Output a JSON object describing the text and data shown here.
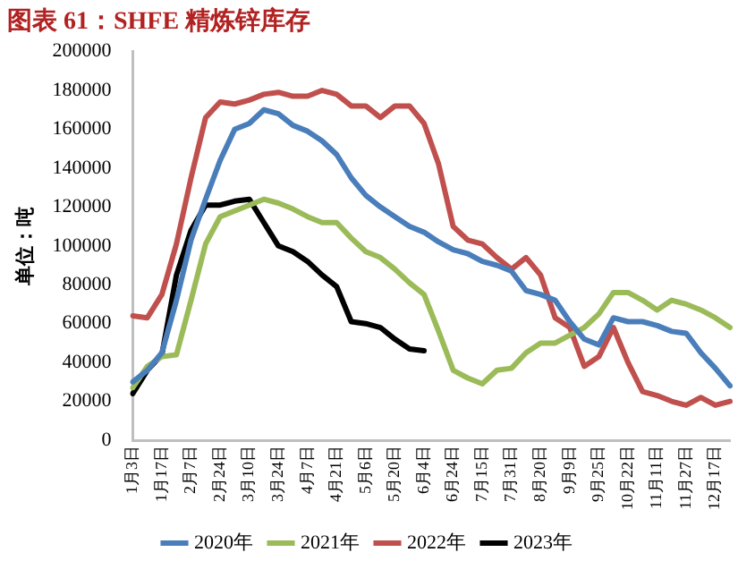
{
  "chart_data": {
    "type": "line",
    "title": "图表 61：SHFE 精炼锌库存",
    "ylabel": "单位：吨",
    "categories": [
      "1月3日",
      null,
      "1月17日",
      null,
      "2月7日",
      null,
      "2月24日",
      null,
      "3月10日",
      null,
      "3月24日",
      null,
      "4月7日",
      null,
      "4月21日",
      null,
      "5月6日",
      null,
      "5月20日",
      null,
      "6月4日",
      null,
      "6月24日",
      null,
      "7月15日",
      null,
      "7月31日",
      null,
      "8月20日",
      null,
      "9月9日",
      null,
      "9月25日",
      null,
      "10月22日",
      null,
      "11月11日",
      null,
      "11月27日",
      null,
      "12月17日",
      null
    ],
    "ylim": [
      0,
      200000
    ],
    "yticks": [
      0,
      20000,
      40000,
      60000,
      80000,
      100000,
      120000,
      140000,
      160000,
      180000,
      200000
    ],
    "grid": false,
    "legend": "bottom",
    "marker": "none",
    "line_style": "solid",
    "series": [
      {
        "name": "2020年",
        "color": "#4a7ebb",
        "values": [
          30000,
          36000,
          45000,
          72000,
          103000,
          124000,
          144000,
          160000,
          163000,
          170000,
          168000,
          162000,
          159000,
          154000,
          147000,
          135000,
          126000,
          120000,
          115000,
          110000,
          107000,
          102000,
          98000,
          96000,
          92000,
          90000,
          87000,
          77000,
          75000,
          72000,
          61000,
          52000,
          49000,
          63000,
          61000,
          61000,
          59000,
          56000,
          55000,
          45000,
          37000,
          28000
        ]
      },
      {
        "name": "2021年",
        "color": "#9bbb59",
        "values": [
          27000,
          38000,
          43000,
          44000,
          72000,
          101000,
          115000,
          118000,
          121000,
          124000,
          122000,
          119000,
          115000,
          112000,
          112000,
          104000,
          97000,
          94000,
          88000,
          81000,
          75000,
          56000,
          36000,
          32000,
          29000,
          36000,
          37000,
          45000,
          50000,
          50000,
          54000,
          58000,
          65000,
          76000,
          76000,
          72000,
          67000,
          72000,
          70000,
          67000,
          63000,
          58000
        ]
      },
      {
        "name": "2022年",
        "color": "#c0504d",
        "values": [
          64000,
          63000,
          75000,
          101000,
          135000,
          166000,
          174000,
          173000,
          175000,
          178000,
          179000,
          177000,
          177000,
          180000,
          178000,
          172000,
          172000,
          166000,
          172000,
          172000,
          163000,
          142000,
          110000,
          103000,
          101000,
          94000,
          88000,
          94000,
          85000,
          63000,
          58000,
          38000,
          43000,
          58000,
          40000,
          25000,
          23000,
          20000,
          18000,
          22000,
          18000,
          20000
        ]
      },
      {
        "name": "2023年",
        "color": "#000000",
        "values": [
          24000,
          36000,
          44000,
          85000,
          108000,
          121000,
          121000,
          123000,
          124000,
          112000,
          100000,
          97000,
          92000,
          85000,
          79000,
          61000,
          60000,
          58000,
          52000,
          47000,
          46000,
          null,
          null,
          null,
          null,
          null,
          null,
          null,
          null,
          null,
          null,
          null,
          null,
          null,
          null,
          null,
          null,
          null,
          null,
          null,
          null,
          null
        ]
      }
    ]
  }
}
